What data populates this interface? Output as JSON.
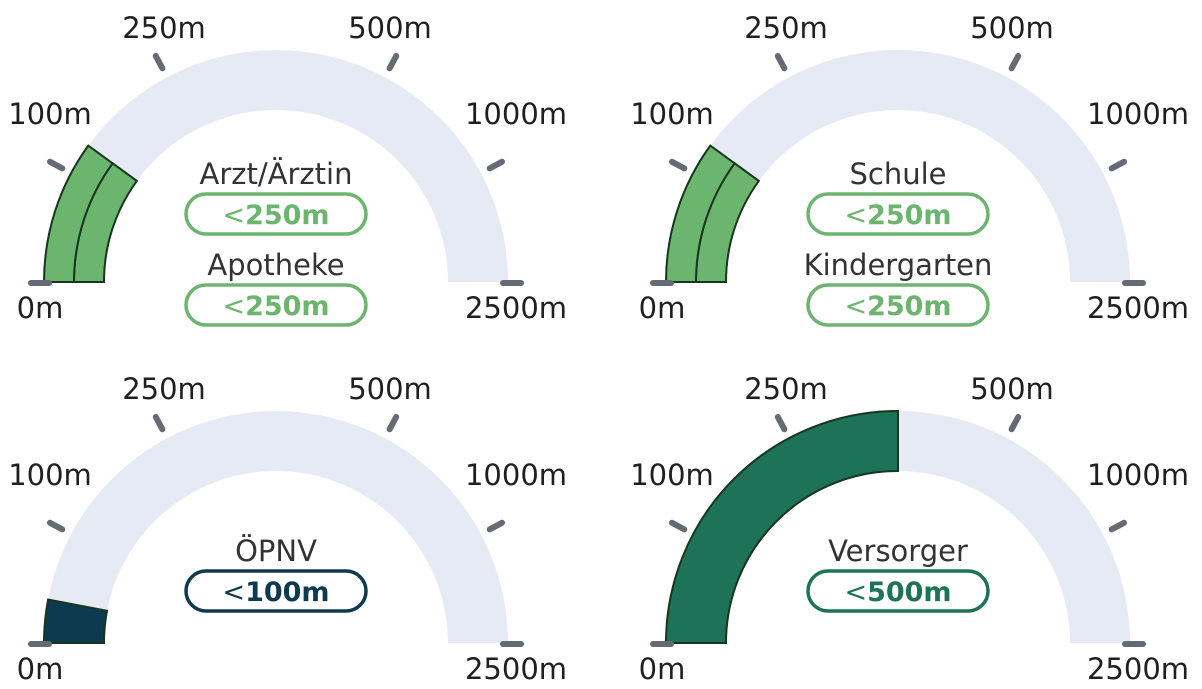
{
  "colors": {
    "track": "#e5eaf4",
    "tick": "#646b75",
    "outline": "#16361e",
    "label": "#333333",
    "tick_label": "#1f1f1f"
  },
  "scale": {
    "labels": [
      "0m",
      "100m",
      "250m",
      "500m",
      "1000m",
      "2500m"
    ]
  },
  "gauges": [
    {
      "name": "gauge-arzt-apotheke",
      "metrics": [
        {
          "label": "Arzt/Ärztin",
          "badge_prefix": "<",
          "badge_value": "250m",
          "color": "#6cb56e",
          "fill_level": 0.2
        },
        {
          "label": "Apotheke",
          "badge_prefix": "<",
          "badge_value": "250m",
          "color": "#6cb56e",
          "fill_level": 0.2
        }
      ]
    },
    {
      "name": "gauge-schule-kindergarten",
      "metrics": [
        {
          "label": "Schule",
          "badge_prefix": "<",
          "badge_value": "250m",
          "color": "#6cb56e",
          "fill_level": 0.2
        },
        {
          "label": "Kindergarten",
          "badge_prefix": "<",
          "badge_value": "250m",
          "color": "#6cb56e",
          "fill_level": 0.2
        }
      ]
    },
    {
      "name": "gauge-oepnv",
      "metrics": [
        {
          "label": "ÖPNV",
          "badge_prefix": "<",
          "badge_value": "100m",
          "color": "#0d3a4f",
          "fill_level": 0.06
        }
      ]
    },
    {
      "name": "gauge-versorger",
      "metrics": [
        {
          "label": "Versorger",
          "badge_prefix": "<",
          "badge_value": "500m",
          "color": "#1d7258",
          "fill_level": 0.5
        }
      ]
    }
  ]
}
